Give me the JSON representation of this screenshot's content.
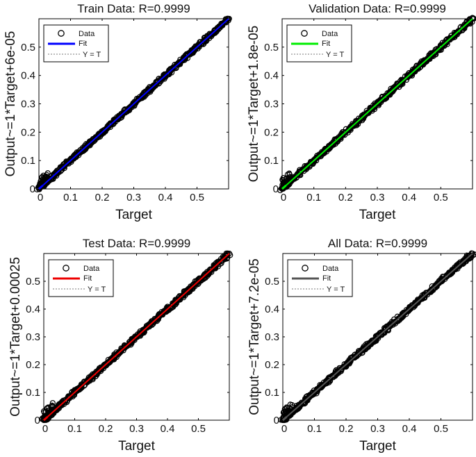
{
  "chart_data": [
    {
      "type": "scatter",
      "title": "Train Data: R=0.9999",
      "xlabel": "Target",
      "ylabel": "Output~=1*Target+6e-05",
      "xlim": [
        0,
        0.6
      ],
      "ylim": [
        0,
        0.6
      ],
      "x_ticks": [
        "0",
        "0.1",
        "0.2",
        "0.3",
        "0.4",
        "0.5"
      ],
      "y_ticks": [
        "0",
        "0.1",
        "0.2",
        "0.3",
        "0.4",
        "0.5"
      ],
      "grid": false,
      "legend_position": "top-left",
      "fit_color": "#0000ff",
      "legend": {
        "data": "Data",
        "fit": "Fit",
        "identity": "Y = T"
      },
      "series": [
        {
          "x": [
            0,
            0.01,
            0.02,
            0.05,
            0.1,
            0.15,
            0.2,
            0.25,
            0.3,
            0.35,
            0.4,
            0.45,
            0.5,
            0.55,
            0.6
          ],
          "y": [
            0,
            0.01,
            0.03,
            0.05,
            0.1,
            0.15,
            0.2,
            0.25,
            0.3,
            0.35,
            0.4,
            0.45,
            0.5,
            0.55,
            0.6
          ]
        }
      ]
    },
    {
      "type": "scatter",
      "title": "Validation Data: R=0.9999",
      "xlabel": "Target",
      "ylabel": "Output~=1*Target+1.8e-05",
      "xlim": [
        0,
        0.6
      ],
      "ylim": [
        0,
        0.6
      ],
      "x_ticks": [
        "0",
        "0.1",
        "0.2",
        "0.3",
        "0.4",
        "0.5"
      ],
      "y_ticks": [
        "0",
        "0.1",
        "0.2",
        "0.3",
        "0.4",
        "0.5"
      ],
      "grid": false,
      "legend_position": "top-left",
      "fit_color": "#00ee00",
      "legend": {
        "data": "Data",
        "fit": "Fit",
        "identity": "Y = T"
      },
      "series": [
        {
          "x": [
            0,
            0.01,
            0.02,
            0.05,
            0.1,
            0.15,
            0.2,
            0.25,
            0.3,
            0.35,
            0.4,
            0.45,
            0.5,
            0.55,
            0.6
          ],
          "y": [
            0,
            0.01,
            0.03,
            0.05,
            0.1,
            0.15,
            0.2,
            0.25,
            0.3,
            0.35,
            0.4,
            0.45,
            0.5,
            0.55,
            0.6
          ]
        }
      ]
    },
    {
      "type": "scatter",
      "title": "Test Data: R=0.9999",
      "xlabel": "Target",
      "ylabel": "Output~=1*Target+0.00025",
      "xlim": [
        0,
        0.6
      ],
      "ylim": [
        0,
        0.6
      ],
      "x_ticks": [
        "0",
        "0.1",
        "0.2",
        "0.3",
        "0.4",
        "0.5"
      ],
      "y_ticks": [
        "0",
        "0.1",
        "0.2",
        "0.3",
        "0.4",
        "0.5"
      ],
      "grid": false,
      "legend_position": "top-left",
      "fit_color": "#ee0000",
      "legend": {
        "data": "Data",
        "fit": "Fit",
        "identity": "Y = T"
      },
      "series": [
        {
          "x": [
            0,
            0.01,
            0.02,
            0.05,
            0.1,
            0.15,
            0.2,
            0.25,
            0.3,
            0.35,
            0.4,
            0.45,
            0.5,
            0.55,
            0.6
          ],
          "y": [
            0,
            0.01,
            0.03,
            0.05,
            0.1,
            0.15,
            0.2,
            0.25,
            0.3,
            0.35,
            0.4,
            0.45,
            0.5,
            0.55,
            0.6
          ]
        }
      ]
    },
    {
      "type": "scatter",
      "title": "All Data: R=0.9999",
      "xlabel": "Target",
      "ylabel": "Output~=1*Target+7.2e-05",
      "xlim": [
        0,
        0.6
      ],
      "ylim": [
        0,
        0.6
      ],
      "x_ticks": [
        "0",
        "0.1",
        "0.2",
        "0.3",
        "0.4",
        "0.5"
      ],
      "y_ticks": [
        "0",
        "0.1",
        "0.2",
        "0.3",
        "0.4",
        "0.5"
      ],
      "grid": false,
      "legend_position": "top-left",
      "fit_color": "#555555",
      "legend": {
        "data": "Data",
        "fit": "Fit",
        "identity": "Y = T"
      },
      "series": [
        {
          "x": [
            0,
            0.01,
            0.02,
            0.05,
            0.1,
            0.15,
            0.2,
            0.25,
            0.3,
            0.35,
            0.4,
            0.45,
            0.5,
            0.55,
            0.6
          ],
          "y": [
            0,
            0.01,
            0.03,
            0.05,
            0.1,
            0.15,
            0.2,
            0.25,
            0.3,
            0.35,
            0.4,
            0.45,
            0.5,
            0.55,
            0.6
          ]
        }
      ]
    }
  ]
}
